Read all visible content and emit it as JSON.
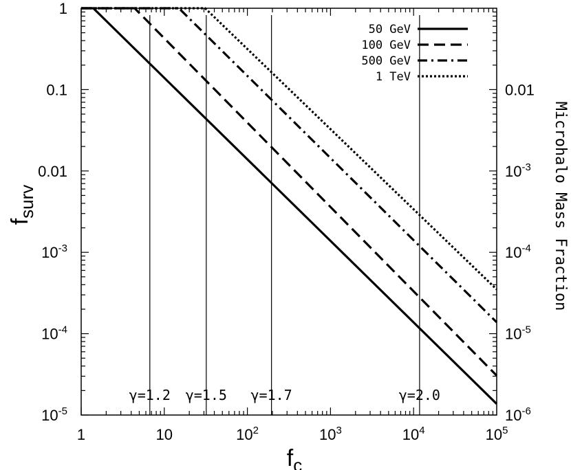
{
  "chart_data": {
    "type": "line",
    "title": "",
    "xlabel": {
      "main": "f",
      "sub": "c"
    },
    "ylabel": {
      "main": "f",
      "sub": "surv"
    },
    "y2label": "Microhalo Mass Fraction",
    "xscale": "log",
    "yscale": "log",
    "xlim": [
      1,
      100000
    ],
    "ylim": [
      1e-05,
      1
    ],
    "y2lim": [
      1e-06,
      0.1
    ],
    "legend_position": "top-right",
    "x_ticks": [
      {
        "value": 1,
        "mantissa": "1",
        "exp": ""
      },
      {
        "value": 10,
        "mantissa": "10",
        "exp": ""
      },
      {
        "value": 100,
        "mantissa": "10",
        "exp": "2"
      },
      {
        "value": 1000,
        "mantissa": "10",
        "exp": "3"
      },
      {
        "value": 10000,
        "mantissa": "10",
        "exp": "4"
      },
      {
        "value": 100000,
        "mantissa": "10",
        "exp": "5"
      }
    ],
    "y_ticks": [
      {
        "value": 1,
        "mantissa": "1",
        "exp": ""
      },
      {
        "value": 0.1,
        "mantissa": "0.1",
        "exp": ""
      },
      {
        "value": 0.01,
        "mantissa": "0.01",
        "exp": ""
      },
      {
        "value": 0.001,
        "mantissa": "10",
        "exp": "-3"
      },
      {
        "value": 0.0001,
        "mantissa": "10",
        "exp": "-4"
      },
      {
        "value": 1e-05,
        "mantissa": "10",
        "exp": "-5"
      }
    ],
    "y2_ticks": [
      {
        "value": 0.01,
        "mantissa": "0.01",
        "exp": ""
      },
      {
        "value": 0.001,
        "mantissa": "10",
        "exp": "-3"
      },
      {
        "value": 0.0001,
        "mantissa": "10",
        "exp": "-4"
      },
      {
        "value": 1e-05,
        "mantissa": "10",
        "exp": "-5"
      },
      {
        "value": 1e-06,
        "mantissa": "10",
        "exp": "-6"
      }
    ],
    "series": [
      {
        "name": "50 GeV",
        "style": "solid",
        "x": [
          1,
          1.4,
          100000
        ],
        "y": [
          1,
          1,
          1.37e-05
        ]
      },
      {
        "name": "100 GeV",
        "style": "dashed",
        "x": [
          1,
          4.4,
          100000
        ],
        "y": [
          1,
          1,
          3.05e-05
        ]
      },
      {
        "name": "500 GeV",
        "style": "dash-dot",
        "x": [
          1,
          15,
          100000
        ],
        "y": [
          1,
          1,
          0.000138
        ]
      },
      {
        "name": "1 TeV",
        "style": "dotted",
        "x": [
          1,
          31,
          100000
        ],
        "y": [
          1,
          1,
          0.00035
        ]
      }
    ],
    "vlines": [
      {
        "x": 6.7,
        "label": "γ=1.2"
      },
      {
        "x": 32,
        "label": "γ=1.5"
      },
      {
        "x": 195,
        "label": "γ=1.7"
      },
      {
        "x": 11800,
        "label": "γ=2.0"
      }
    ]
  }
}
